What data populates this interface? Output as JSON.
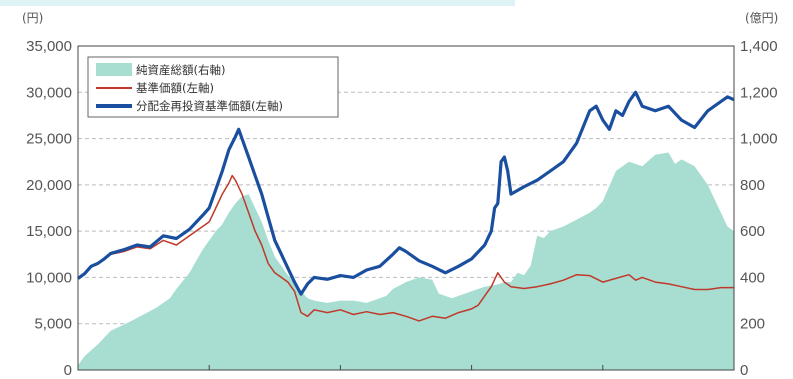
{
  "chart_data": {
    "type": "line",
    "title": "",
    "left_axis": {
      "unit": "(円)",
      "ylim": [
        0,
        35000
      ],
      "ticks": [
        "0",
        "5,000",
        "10,000",
        "15,000",
        "20,000",
        "25,000",
        "30,000",
        "35,000"
      ]
    },
    "right_axis": {
      "unit": "(億円)",
      "ylim": [
        0,
        1400
      ],
      "ticks": [
        "0",
        "200",
        "400",
        "600",
        "800",
        "1,000",
        "1,200",
        "1,400"
      ]
    },
    "grid": "horizontal-dashed",
    "legend_position": "top-left",
    "x_index_range": [
      0,
      100
    ],
    "x_index_note": "",
    "series": [
      {
        "name": "純資産総額(右軸)",
        "axis": "right",
        "kind": "area",
        "color": "#a8ddd1",
        "points": [
          [
            0,
            20
          ],
          [
            1,
            60
          ],
          [
            3,
            110
          ],
          [
            5,
            170
          ],
          [
            8,
            210
          ],
          [
            10,
            240
          ],
          [
            12,
            270
          ],
          [
            14,
            310
          ],
          [
            15,
            350
          ],
          [
            17,
            420
          ],
          [
            19,
            520
          ],
          [
            21,
            600
          ],
          [
            22,
            630
          ],
          [
            23,
            680
          ],
          [
            24,
            720
          ],
          [
            25,
            750
          ],
          [
            26,
            760
          ],
          [
            27,
            700
          ],
          [
            28,
            640
          ],
          [
            29,
            560
          ],
          [
            30,
            490
          ],
          [
            32,
            410
          ],
          [
            34,
            340
          ],
          [
            35,
            310
          ],
          [
            36,
            300
          ],
          [
            38,
            290
          ],
          [
            40,
            300
          ],
          [
            42,
            300
          ],
          [
            44,
            290
          ],
          [
            46,
            310
          ],
          [
            47,
            320
          ],
          [
            48,
            350
          ],
          [
            50,
            380
          ],
          [
            52,
            400
          ],
          [
            54,
            390
          ],
          [
            55,
            330
          ],
          [
            57,
            310
          ],
          [
            58,
            320
          ],
          [
            60,
            340
          ],
          [
            62,
            360
          ],
          [
            64,
            370
          ],
          [
            65,
            380
          ],
          [
            66,
            380
          ],
          [
            67,
            420
          ],
          [
            68,
            410
          ],
          [
            69,
            450
          ],
          [
            70,
            580
          ],
          [
            71,
            570
          ],
          [
            72,
            600
          ],
          [
            74,
            620
          ],
          [
            76,
            650
          ],
          [
            78,
            680
          ],
          [
            79,
            700
          ],
          [
            80,
            730
          ],
          [
            82,
            860
          ],
          [
            83,
            880
          ],
          [
            84,
            900
          ],
          [
            86,
            880
          ],
          [
            88,
            930
          ],
          [
            90,
            940
          ],
          [
            91,
            890
          ],
          [
            92,
            910
          ],
          [
            94,
            880
          ],
          [
            96,
            800
          ],
          [
            97,
            740
          ],
          [
            98,
            680
          ],
          [
            99,
            620
          ],
          [
            100,
            600
          ]
        ]
      },
      {
        "name": "基準価額(左軸)",
        "axis": "left",
        "kind": "line",
        "color": "#c0392b",
        "points": [
          [
            0,
            9900
          ],
          [
            1,
            10400
          ],
          [
            2,
            11200
          ],
          [
            3,
            11500
          ],
          [
            4,
            12000
          ],
          [
            5,
            12500
          ],
          [
            7,
            12800
          ],
          [
            9,
            13300
          ],
          [
            11,
            13100
          ],
          [
            13,
            14000
          ],
          [
            15,
            13500
          ],
          [
            17,
            14500
          ],
          [
            19,
            15500
          ],
          [
            20,
            16000
          ],
          [
            21,
            17500
          ],
          [
            22,
            19000
          ],
          [
            23,
            20200
          ],
          [
            23.5,
            21000
          ],
          [
            24,
            20500
          ],
          [
            25,
            19000
          ],
          [
            26,
            17000
          ],
          [
            27,
            15000
          ],
          [
            28,
            13500
          ],
          [
            29,
            11500
          ],
          [
            30,
            10500
          ],
          [
            31,
            10000
          ],
          [
            32,
            9500
          ],
          [
            33,
            8500
          ],
          [
            34,
            6200
          ],
          [
            35,
            5800
          ],
          [
            36,
            6500
          ],
          [
            38,
            6200
          ],
          [
            40,
            6500
          ],
          [
            42,
            6000
          ],
          [
            44,
            6300
          ],
          [
            46,
            6000
          ],
          [
            48,
            6200
          ],
          [
            50,
            5800
          ],
          [
            52,
            5300
          ],
          [
            54,
            5800
          ],
          [
            56,
            5600
          ],
          [
            58,
            6200
          ],
          [
            60,
            6600
          ],
          [
            61,
            7000
          ],
          [
            62,
            8000
          ],
          [
            63,
            9000
          ],
          [
            64,
            10500
          ],
          [
            65,
            9500
          ],
          [
            66,
            9000
          ],
          [
            68,
            8800
          ],
          [
            70,
            9000
          ],
          [
            72,
            9300
          ],
          [
            74,
            9700
          ],
          [
            76,
            10300
          ],
          [
            78,
            10200
          ],
          [
            80,
            9500
          ],
          [
            82,
            9900
          ],
          [
            84,
            10300
          ],
          [
            85,
            9700
          ],
          [
            86,
            10000
          ],
          [
            88,
            9500
          ],
          [
            90,
            9300
          ],
          [
            92,
            9000
          ],
          [
            94,
            8700
          ],
          [
            96,
            8700
          ],
          [
            98,
            8900
          ],
          [
            100,
            8900
          ]
        ]
      },
      {
        "name": "分配金再投資基準価額(左軸)",
        "axis": "left",
        "kind": "line",
        "color": "#1a4fa0",
        "points": [
          [
            0,
            9900
          ],
          [
            1,
            10400
          ],
          [
            2,
            11200
          ],
          [
            3,
            11500
          ],
          [
            4,
            12000
          ],
          [
            5,
            12600
          ],
          [
            7,
            13000
          ],
          [
            9,
            13500
          ],
          [
            11,
            13300
          ],
          [
            13,
            14500
          ],
          [
            15,
            14200
          ],
          [
            17,
            15200
          ],
          [
            19,
            16700
          ],
          [
            20,
            17500
          ],
          [
            21,
            19500
          ],
          [
            22,
            21500
          ],
          [
            23,
            23800
          ],
          [
            24,
            25200
          ],
          [
            24.5,
            26000
          ],
          [
            25,
            25000
          ],
          [
            26,
            23000
          ],
          [
            27,
            21000
          ],
          [
            28,
            19000
          ],
          [
            29,
            16500
          ],
          [
            30,
            14000
          ],
          [
            31,
            12500
          ],
          [
            32,
            11000
          ],
          [
            33,
            9500
          ],
          [
            34,
            8200
          ],
          [
            35,
            9300
          ],
          [
            36,
            10000
          ],
          [
            38,
            9800
          ],
          [
            40,
            10200
          ],
          [
            42,
            10000
          ],
          [
            44,
            10800
          ],
          [
            46,
            11200
          ],
          [
            48,
            12500
          ],
          [
            49,
            13200
          ],
          [
            50,
            12800
          ],
          [
            52,
            11800
          ],
          [
            54,
            11200
          ],
          [
            56,
            10500
          ],
          [
            58,
            11200
          ],
          [
            60,
            12000
          ],
          [
            62,
            13500
          ],
          [
            63,
            15000
          ],
          [
            63.5,
            17500
          ],
          [
            64,
            18000
          ],
          [
            64.5,
            22500
          ],
          [
            65,
            23000
          ],
          [
            65.5,
            21500
          ],
          [
            66,
            19000
          ],
          [
            68,
            19800
          ],
          [
            70,
            20500
          ],
          [
            72,
            21500
          ],
          [
            74,
            22500
          ],
          [
            76,
            24500
          ],
          [
            78,
            28000
          ],
          [
            79,
            28500
          ],
          [
            80,
            27000
          ],
          [
            81,
            26000
          ],
          [
            82,
            28000
          ],
          [
            83,
            27500
          ],
          [
            84,
            29000
          ],
          [
            85,
            30000
          ],
          [
            86,
            28500
          ],
          [
            88,
            28000
          ],
          [
            90,
            28500
          ],
          [
            92,
            27000
          ],
          [
            94,
            26200
          ],
          [
            96,
            28000
          ],
          [
            98,
            29000
          ],
          [
            99,
            29500
          ],
          [
            100,
            29200
          ]
        ]
      }
    ]
  }
}
